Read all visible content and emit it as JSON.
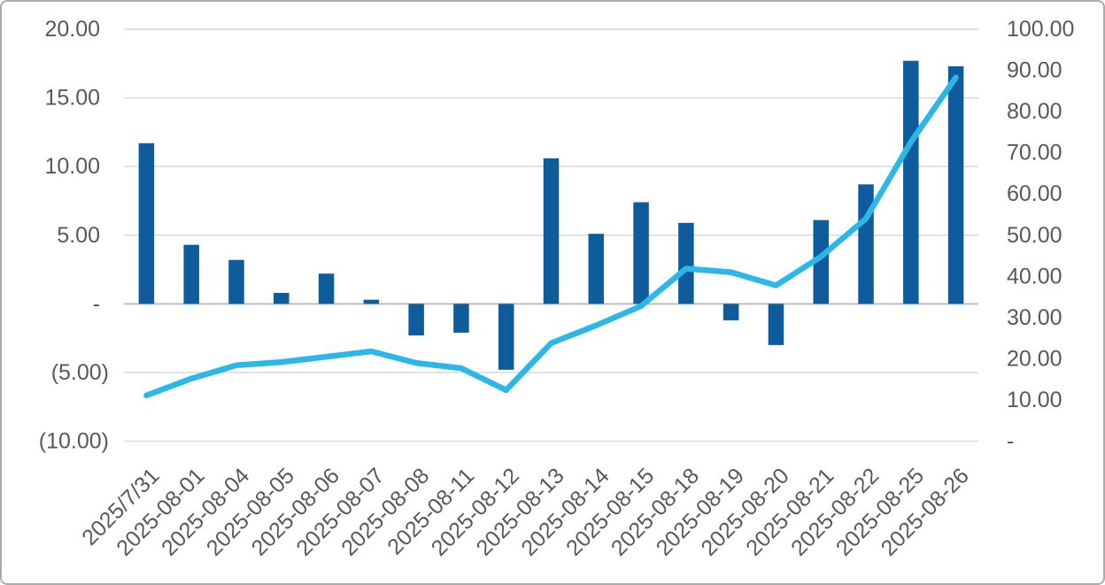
{
  "chart_data": {
    "type": "combo",
    "title": "",
    "categories": [
      "2025/7/31",
      "2025-08-01",
      "2025-08-04",
      "2025-08-05",
      "2025-08-06",
      "2025-08-07",
      "2025-08-08",
      "2025-08-11",
      "2025-08-12",
      "2025-08-13",
      "2025-08-14",
      "2025-08-15",
      "2025-08-18",
      "2025-08-19",
      "2025-08-20",
      "2025-08-21",
      "2025-08-22",
      "2025-08-25",
      "2025-08-26"
    ],
    "series": [
      {
        "name": "bars",
        "type": "bar",
        "axis": "left",
        "color": "#0e5c9c",
        "values": [
          11.7,
          4.3,
          3.2,
          0.8,
          2.2,
          0.3,
          -2.3,
          -2.1,
          -4.8,
          10.6,
          5.1,
          7.4,
          5.9,
          -1.2,
          -3.0,
          6.1,
          8.7,
          17.7,
          17.3
        ]
      },
      {
        "name": "line",
        "type": "line",
        "axis": "right",
        "color": "#2bb7e8",
        "values": [
          11.1,
          15.2,
          18.4,
          19.2,
          20.5,
          21.8,
          19.0,
          17.7,
          12.4,
          23.8,
          28.1,
          32.8,
          41.9,
          41.0,
          37.8,
          44.8,
          54.0,
          72.6,
          88.3
        ]
      }
    ],
    "left_axis": {
      "range": [
        -10,
        20
      ],
      "step": 5,
      "tick_values": [
        20,
        15,
        10,
        5,
        0,
        -5,
        -10
      ],
      "tick_labels": [
        "20.00",
        "15.00",
        "10.00",
        "5.00",
        "-",
        "(5.00)",
        "(10.00)"
      ]
    },
    "right_axis": {
      "range": [
        0,
        100
      ],
      "step": 10,
      "tick_values": [
        100,
        90,
        80,
        70,
        60,
        50,
        40,
        30,
        20,
        10,
        0
      ],
      "tick_labels": [
        "100.00",
        "90.00",
        "80.00",
        "70.00",
        "60.00",
        "50.00",
        "40.00",
        "30.00",
        "20.00",
        "10.00",
        "-"
      ]
    },
    "grid": true,
    "legend": "none",
    "x_label_rotation_deg": 45,
    "colors": {
      "gridline": "#d9d9d9",
      "zero_axis": "#bfbfbf",
      "tick_text": "#595959",
      "frame_border": "#ababab",
      "background": "#ffffff"
    }
  }
}
